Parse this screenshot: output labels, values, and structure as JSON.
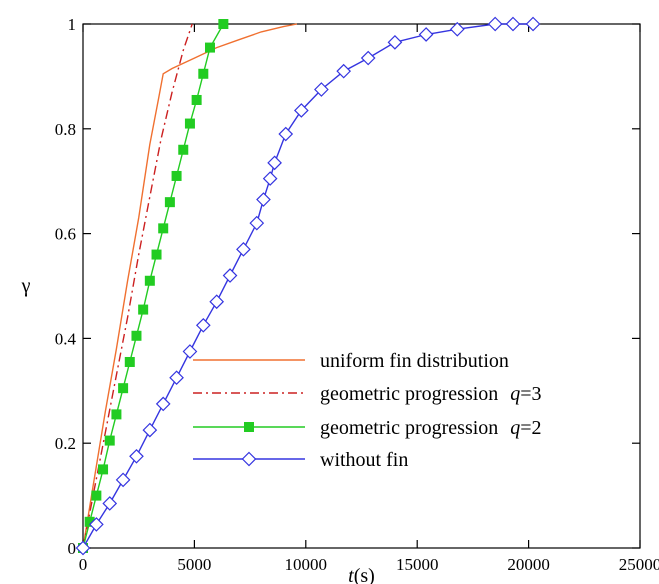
{
  "chart_data": {
    "type": "line",
    "xlabel_italic": "t",
    "xlabel_unit": "(s)",
    "ylabel": "γ",
    "xlim": [
      0,
      25000
    ],
    "ylim": [
      0,
      1
    ],
    "xticks": [
      0,
      5000,
      10000,
      15000,
      20000,
      25000
    ],
    "yticks": [
      0,
      0.2,
      0.4,
      0.6,
      0.8,
      1
    ],
    "ytick_labels": [
      "0",
      "0.2",
      "0.4",
      "0.6",
      "0.8",
      "1"
    ],
    "grid": false,
    "legend_position": "bottom-right",
    "series": [
      {
        "name": "uniform fin distribution",
        "color": "#f07030",
        "line_style": "solid",
        "marker": "none",
        "x": [
          0,
          500,
          1000,
          1500,
          2000,
          2500,
          3000,
          3400,
          3600,
          4000,
          5000,
          6000,
          7000,
          8000,
          9000,
          9600
        ],
        "y": [
          0,
          0.13,
          0.26,
          0.38,
          0.51,
          0.63,
          0.77,
          0.86,
          0.905,
          0.915,
          0.935,
          0.955,
          0.97,
          0.985,
          0.995,
          1.0
        ]
      },
      {
        "name": "geometric progression",
        "name_suffix": "q",
        "name_value": "=3",
        "color": "#cc2020",
        "line_style": "dashdot",
        "marker": "none",
        "x": [
          0,
          500,
          1000,
          1500,
          2000,
          2500,
          3000,
          3500,
          4000,
          4500,
          4900
        ],
        "y": [
          0,
          0.11,
          0.22,
          0.33,
          0.44,
          0.56,
          0.67,
          0.78,
          0.87,
          0.95,
          1.0
        ]
      },
      {
        "name": "geometric progression",
        "name_suffix": "q",
        "name_value": "=2",
        "color": "#22cc22",
        "line_style": "solid",
        "marker": "square",
        "x": [
          0,
          300,
          600,
          900,
          1200,
          1500,
          1800,
          2100,
          2400,
          2700,
          3000,
          3300,
          3600,
          3900,
          4200,
          4500,
          4800,
          5100,
          5400,
          5700,
          6300
        ],
        "y": [
          0,
          0.05,
          0.1,
          0.15,
          0.205,
          0.255,
          0.305,
          0.355,
          0.405,
          0.455,
          0.51,
          0.56,
          0.61,
          0.66,
          0.71,
          0.76,
          0.81,
          0.855,
          0.905,
          0.955,
          1.0
        ]
      },
      {
        "name": "without fin",
        "color": "#3535e0",
        "line_style": "solid",
        "marker": "diamond",
        "x": [
          0,
          600,
          1200,
          1800,
          2400,
          3000,
          3600,
          4200,
          4800,
          5400,
          6000,
          6600,
          7200,
          7800,
          8100,
          8400,
          8600,
          9100,
          9800,
          10700,
          11700,
          12800,
          14000,
          15400,
          16800,
          18500,
          19300,
          20200
        ],
        "y": [
          0,
          0.045,
          0.085,
          0.13,
          0.175,
          0.225,
          0.275,
          0.325,
          0.375,
          0.425,
          0.47,
          0.52,
          0.57,
          0.62,
          0.665,
          0.705,
          0.735,
          0.79,
          0.835,
          0.875,
          0.91,
          0.935,
          0.965,
          0.98,
          0.99,
          1.0,
          1.0,
          1.0
        ]
      }
    ]
  }
}
